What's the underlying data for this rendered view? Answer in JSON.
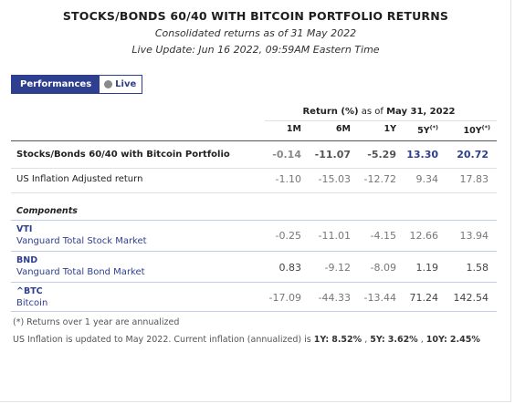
{
  "header": {
    "title": "STOCKS/BONDS 60/40 WITH BITCOIN PORTFOLIO RETURNS",
    "subtitle": "Consolidated returns as of 31 May 2022",
    "live_update": "Live Update: Jun 16 2022, 09:59AM Eastern Time"
  },
  "tabs": {
    "performances": "Performances",
    "live": "Live"
  },
  "table": {
    "return_label": "Return (%)",
    "as_of_prefix": "as of",
    "as_of_date": "May 31, 2022",
    "columns": [
      "1M",
      "6M",
      "1Y",
      "5Y",
      "10Y"
    ],
    "column_marks": [
      "",
      "",
      "",
      "(*)",
      "(*)"
    ],
    "portfolio": {
      "label": "Stocks/Bonds 60/40 with Bitcoin Portfolio",
      "values": [
        "-0.14",
        "-11.07",
        "-5.29",
        "13.30",
        "20.72"
      ]
    },
    "inflation": {
      "label": "US Inflation Adjusted return",
      "values": [
        "-1.10",
        "-15.03",
        "-12.72",
        "9.34",
        "17.83"
      ]
    },
    "components_label": "Components",
    "components": [
      {
        "ticker": "VTI",
        "name": "Vanguard Total Stock Market",
        "values": [
          "-0.25",
          "-11.01",
          "-4.15",
          "12.66",
          "13.94"
        ]
      },
      {
        "ticker": "BND",
        "name": "Vanguard Total Bond Market",
        "values": [
          "0.83",
          "-9.12",
          "-8.09",
          "1.19",
          "1.58"
        ]
      },
      {
        "ticker": "^BTC",
        "name": "Bitcoin",
        "values": [
          "-17.09",
          "-44.33",
          "-13.44",
          "71.24",
          "142.54"
        ]
      }
    ]
  },
  "footnotes": {
    "annualized": "(*) Returns over 1 year are annualized",
    "inflation_prefix": "US Inflation is updated to May 2022. Current inflation (annualized) is",
    "k1": "1Y:",
    "v1": "8.52%",
    "k5": "5Y:",
    "v5": "3.62%",
    "k10": "10Y:",
    "v10": "2.45%"
  },
  "colors": {
    "brand_blue": "#2e3f8f",
    "live_dot": "#8a8a8a"
  }
}
